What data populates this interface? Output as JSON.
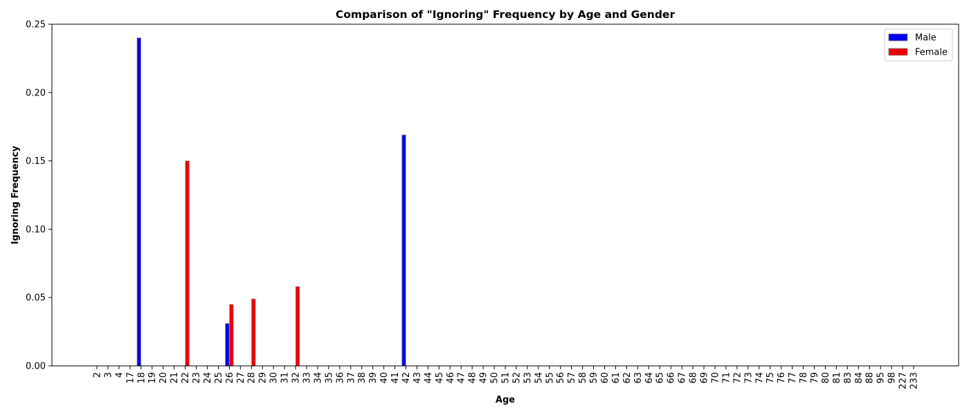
{
  "chart_data": {
    "type": "bar",
    "title": "Comparison of \"Ignoring\" Frequency by Age and Gender",
    "xlabel": "Age",
    "ylabel": "Ignoring Frequency",
    "ylim": [
      0,
      0.25
    ],
    "yticks": [
      "0.00",
      "0.05",
      "0.10",
      "0.15",
      "0.20",
      "0.25"
    ],
    "grid": false,
    "legend_position": "top-right",
    "categories": [
      "2",
      "3",
      "4",
      "17",
      "18",
      "19",
      "20",
      "21",
      "22",
      "23",
      "24",
      "25",
      "26",
      "27",
      "28",
      "29",
      "30",
      "31",
      "32",
      "33",
      "34",
      "35",
      "36",
      "37",
      "38",
      "39",
      "40",
      "41",
      "42",
      "43",
      "44",
      "45",
      "46",
      "47",
      "48",
      "49",
      "50",
      "51",
      "52",
      "53",
      "54",
      "55",
      "56",
      "57",
      "58",
      "59",
      "60",
      "61",
      "62",
      "63",
      "64",
      "65",
      "66",
      "67",
      "68",
      "69",
      "70",
      "71",
      "72",
      "73",
      "74",
      "75",
      "76",
      "77",
      "78",
      "79",
      "80",
      "81",
      "83",
      "84",
      "88",
      "95",
      "98",
      "227",
      "233"
    ],
    "series": [
      {
        "name": "Male",
        "color": "#0000ee",
        "values": [
          0,
          0,
          0,
          0,
          0.24,
          0,
          0,
          0,
          0,
          0,
          0,
          0,
          0.031,
          0,
          0,
          0,
          0,
          0,
          0,
          0,
          0,
          0,
          0,
          0,
          0,
          0,
          0,
          0,
          0.169,
          0,
          0,
          0,
          0,
          0,
          0,
          0,
          0,
          0,
          0,
          0,
          0,
          0,
          0,
          0,
          0,
          0,
          0,
          0,
          0,
          0,
          0,
          0,
          0,
          0,
          0,
          0,
          0,
          0,
          0,
          0,
          0,
          0,
          0,
          0,
          0,
          0,
          0,
          0,
          0,
          0,
          0,
          0,
          0,
          0,
          0
        ]
      },
      {
        "name": "Female",
        "color": "#ee0000",
        "values": [
          0,
          0,
          0,
          0,
          0,
          0,
          0,
          0,
          0.15,
          0,
          0,
          0,
          0.045,
          0,
          0.049,
          0,
          0,
          0,
          0.058,
          0,
          0,
          0,
          0,
          0,
          0,
          0,
          0,
          0,
          0,
          0,
          0,
          0,
          0,
          0,
          0,
          0,
          0,
          0,
          0,
          0,
          0,
          0,
          0,
          0,
          0,
          0,
          0,
          0,
          0,
          0,
          0,
          0,
          0,
          0,
          0,
          0,
          0,
          0,
          0,
          0,
          0,
          0,
          0,
          0,
          0,
          0,
          0,
          0,
          0,
          0,
          0,
          0,
          0,
          0,
          0
        ]
      }
    ]
  }
}
